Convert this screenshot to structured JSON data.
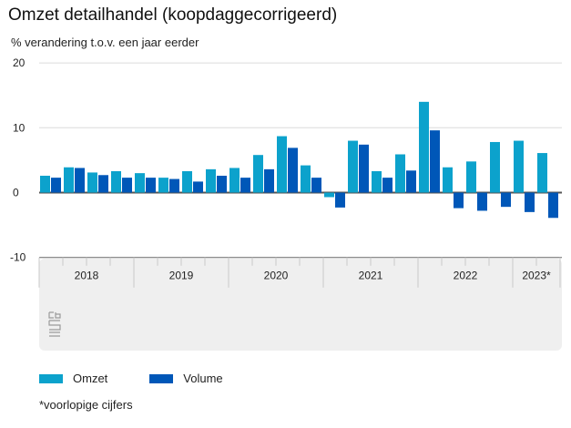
{
  "header": {
    "title": "Omzet detailhandel (koopdaggecorrigeerd)",
    "subtitle": "% verandering t.o.v. een jaar eerder"
  },
  "footnote": "*voorlopige cijfers",
  "logo": "cbs-logo-icon",
  "chart_data": {
    "type": "bar",
    "title": "Omzet detailhandel (koopdaggecorrigeerd)",
    "ylabel": "% verandering t.o.v. een jaar eerder",
    "xlabel": "",
    "ylim": [
      -10,
      20
    ],
    "yticks": [
      20,
      10,
      0,
      -10
    ],
    "grid": true,
    "legend_position": "bottom-left",
    "year_labels": [
      "2018",
      "2019",
      "2020",
      "2021",
      "2022",
      "2023*"
    ],
    "quarters_per_year": [
      4,
      4,
      4,
      4,
      4,
      2
    ],
    "categories": [
      "2018 Q1",
      "2018 Q2",
      "2018 Q3",
      "2018 Q4",
      "2019 Q1",
      "2019 Q2",
      "2019 Q3",
      "2019 Q4",
      "2020 Q1",
      "2020 Q2",
      "2020 Q3",
      "2020 Q4",
      "2021 Q1",
      "2021 Q2",
      "2021 Q3",
      "2021 Q4",
      "2022 Q1",
      "2022 Q2",
      "2022 Q3",
      "2022 Q4",
      "2023 Q1",
      "2023 Q2"
    ],
    "series": [
      {
        "name": "Omzet",
        "color": "#0ca2cc",
        "values": [
          2.6,
          3.9,
          3.1,
          3.3,
          3.0,
          2.3,
          3.3,
          3.6,
          3.8,
          5.8,
          8.7,
          4.2,
          -0.7,
          8.0,
          3.3,
          5.9,
          14.0,
          3.9,
          4.8,
          7.8,
          8.0,
          6.1
        ]
      },
      {
        "name": "Volume",
        "color": "#0057b8",
        "values": [
          2.3,
          3.8,
          2.7,
          2.3,
          2.3,
          2.1,
          1.7,
          2.6,
          2.3,
          3.6,
          6.9,
          2.3,
          -2.3,
          7.4,
          2.3,
          3.4,
          9.6,
          -2.4,
          -2.8,
          -2.2,
          -3.0,
          -3.9
        ]
      }
    ]
  }
}
